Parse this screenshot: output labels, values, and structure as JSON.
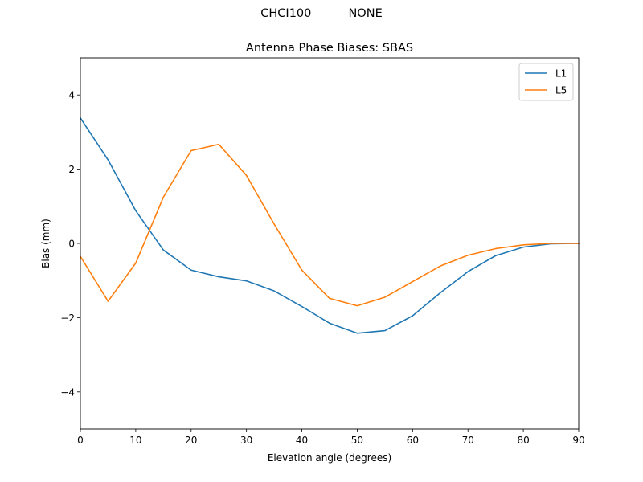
{
  "figure": {
    "suptitle": "CHCI100          NONE"
  },
  "chart_data": {
    "type": "line",
    "title": "Antenna Phase Biases: SBAS",
    "xlabel": "Elevation angle (degrees)",
    "ylabel": "Bias (mm)",
    "xlim": [
      0,
      90
    ],
    "ylim": [
      -5,
      5
    ],
    "xticks": [
      0,
      10,
      20,
      30,
      40,
      50,
      60,
      70,
      80,
      90
    ],
    "yticks": [
      -4,
      -2,
      0,
      2,
      4
    ],
    "xtick_labels": [
      "0",
      "10",
      "20",
      "30",
      "40",
      "50",
      "60",
      "70",
      "80",
      "90"
    ],
    "ytick_labels": [
      "−4",
      "−2",
      "0",
      "2",
      "4"
    ],
    "grid": false,
    "legend_position": "top-right",
    "x": [
      0,
      5,
      10,
      15,
      20,
      25,
      30,
      35,
      40,
      45,
      50,
      55,
      60,
      65,
      70,
      75,
      80,
      85,
      90
    ],
    "series": [
      {
        "name": "L1",
        "color": "#1f77b4",
        "values": [
          3.38,
          2.25,
          0.88,
          -0.18,
          -0.72,
          -0.9,
          -1.01,
          -1.28,
          -1.7,
          -2.15,
          -2.42,
          -2.35,
          -1.95,
          -1.33,
          -0.76,
          -0.33,
          -0.1,
          -0.01,
          0.0
        ]
      },
      {
        "name": "L5",
        "color": "#ff7f0e",
        "values": [
          -0.35,
          -1.56,
          -0.53,
          1.25,
          2.5,
          2.67,
          1.83,
          0.52,
          -0.72,
          -1.48,
          -1.68,
          -1.45,
          -1.03,
          -0.61,
          -0.32,
          -0.14,
          -0.04,
          0.0,
          0.0
        ]
      }
    ]
  }
}
